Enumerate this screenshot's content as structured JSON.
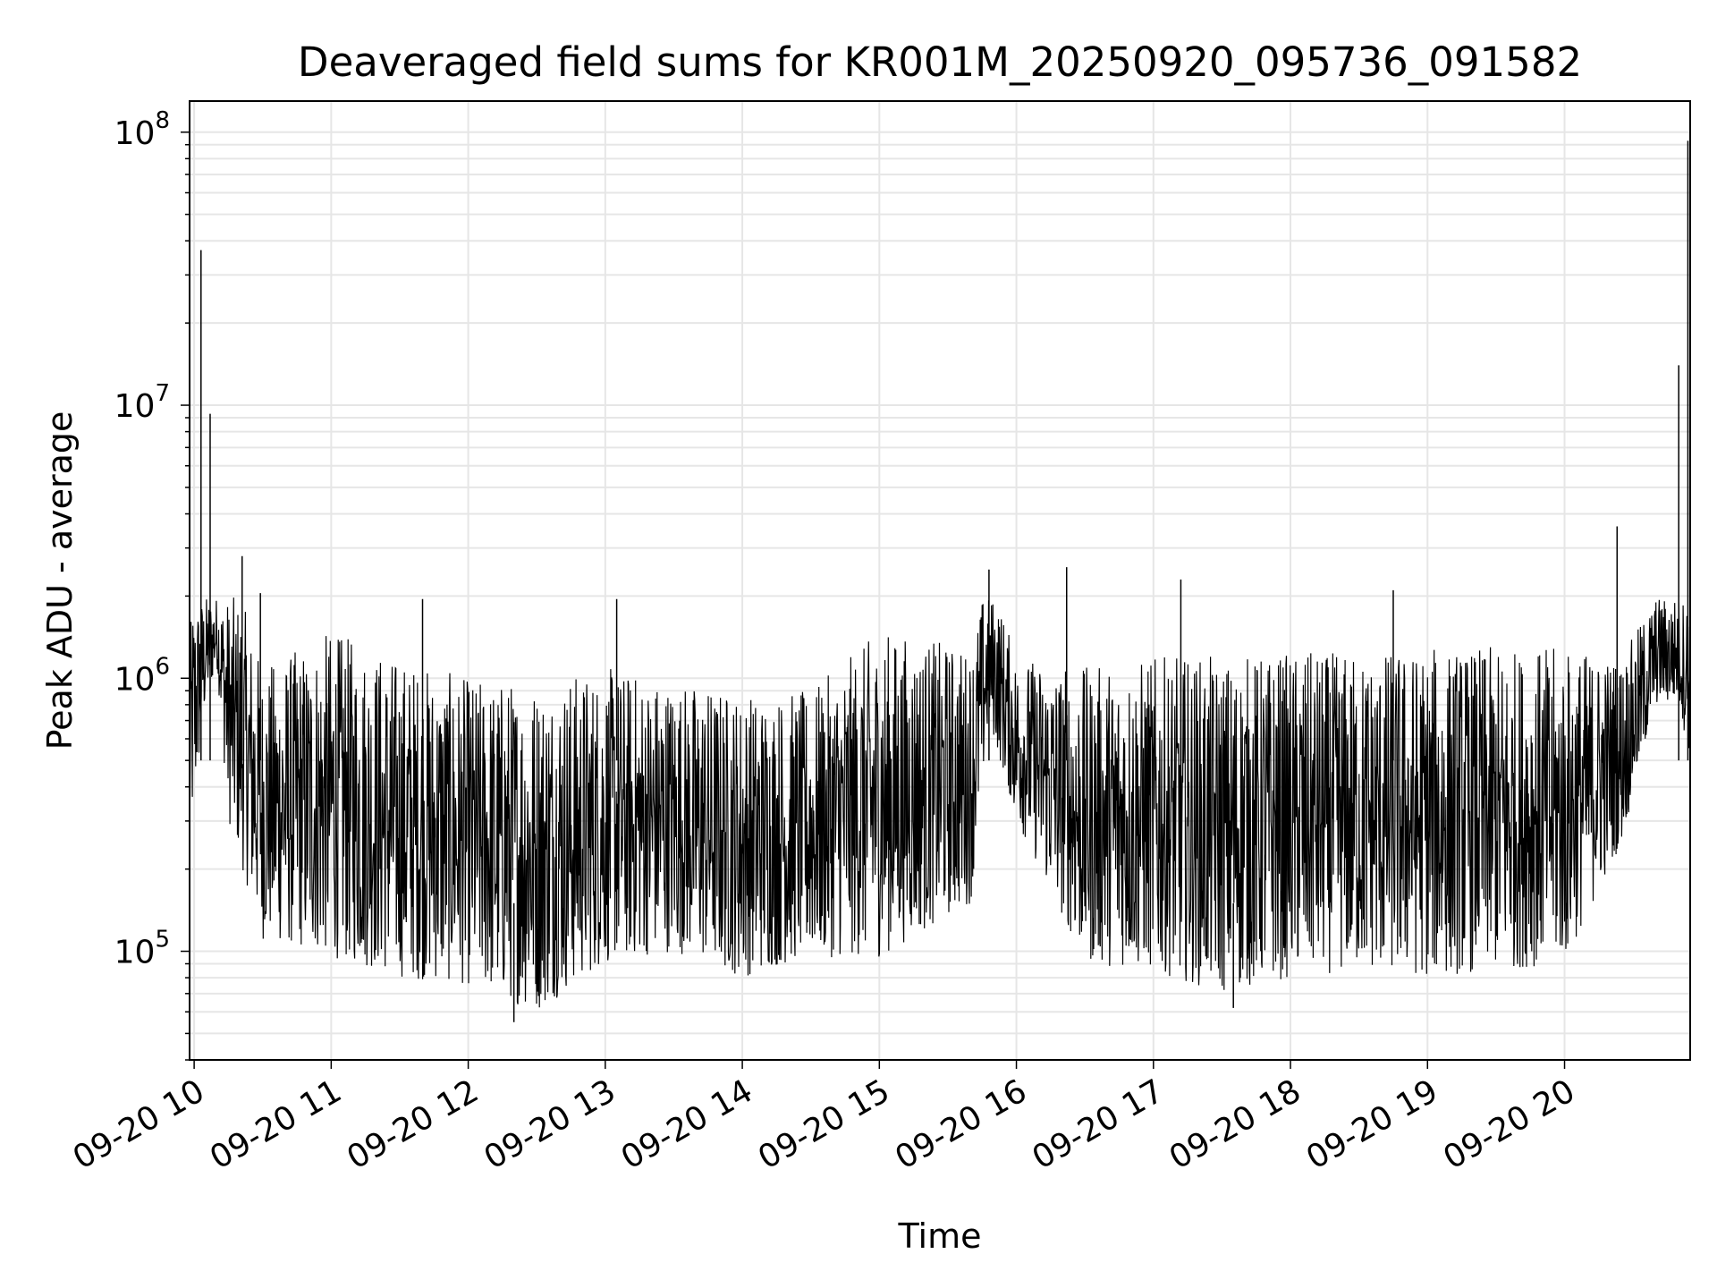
{
  "chart_data": {
    "type": "line",
    "title": "Deaveraged field sums for KR001M_20250920_095736_091582",
    "xlabel": "Time",
    "ylabel": "Peak ADU - average",
    "yscale": "log",
    "ylim": [
      40000,
      130000000
    ],
    "xlim": [
      "2025-09-20 09:58",
      "2025-09-20 20:55"
    ],
    "grid": "on (major and minor)",
    "line_color": "#000000",
    "x_ticks": [
      {
        "t": "2025-09-20 10:00",
        "label": "09-20 10"
      },
      {
        "t": "2025-09-20 11:00",
        "label": "09-20 11"
      },
      {
        "t": "2025-09-20 12:00",
        "label": "09-20 12"
      },
      {
        "t": "2025-09-20 13:00",
        "label": "09-20 13"
      },
      {
        "t": "2025-09-20 14:00",
        "label": "09-20 14"
      },
      {
        "t": "2025-09-20 15:00",
        "label": "09-20 15"
      },
      {
        "t": "2025-09-20 16:00",
        "label": "09-20 16"
      },
      {
        "t": "2025-09-20 17:00",
        "label": "09-20 17"
      },
      {
        "t": "2025-09-20 18:00",
        "label": "09-20 18"
      },
      {
        "t": "2025-09-20 19:00",
        "label": "09-20 19"
      },
      {
        "t": "2025-09-20 20:00",
        "label": "09-20 20"
      }
    ],
    "y_ticks": [
      {
        "value": 100000,
        "base": "10",
        "exp": "5"
      },
      {
        "value": 1000000,
        "base": "10",
        "exp": "6"
      },
      {
        "value": 10000000,
        "base": "10",
        "exp": "7"
      },
      {
        "value": 100000000,
        "base": "10",
        "exp": "8"
      }
    ],
    "series": [
      {
        "values_description": "dense noisy trace; envelope points (time, low, high) in ADU",
        "envelope": [
          [
            "2025-09-20 09:58",
            220000,
            1200000
          ],
          [
            "2025-09-20 10:05",
            800000,
            37000000
          ],
          [
            "2025-09-20 10:10",
            1100000,
            2500000
          ],
          [
            "2025-09-20 10:15",
            300000,
            2800000
          ],
          [
            "2025-09-20 10:30",
            110000,
            1100000
          ],
          [
            "2025-09-20 11:00",
            95000,
            1500000
          ],
          [
            "2025-09-20 11:30",
            80000,
            1200000
          ],
          [
            "2025-09-20 12:00",
            75000,
            1000000
          ],
          [
            "2025-09-20 12:30",
            60000,
            1000000
          ],
          [
            "2025-09-20 13:00",
            90000,
            1100000
          ],
          [
            "2025-09-20 13:30",
            100000,
            1000000
          ],
          [
            "2025-09-20 14:00",
            80000,
            900000
          ],
          [
            "2025-09-20 14:30",
            95000,
            900000
          ],
          [
            "2025-09-20 15:00",
            95000,
            1500000
          ],
          [
            "2025-09-20 15:40",
            150000,
            1300000
          ],
          [
            "2025-09-20 15:48",
            700000,
            2500000
          ],
          [
            "2025-09-20 16:00",
            300000,
            1200000
          ],
          [
            "2025-09-20 16:30",
            90000,
            1100000
          ],
          [
            "2025-09-20 17:00",
            85000,
            1200000
          ],
          [
            "2025-09-20 17:30",
            70000,
            1200000
          ],
          [
            "2025-09-20 18:00",
            80000,
            1250000
          ],
          [
            "2025-09-20 18:30",
            85000,
            1250000
          ],
          [
            "2025-09-20 19:00",
            80000,
            1300000
          ],
          [
            "2025-09-20 19:30",
            85000,
            1300000
          ],
          [
            "2025-09-20 20:00",
            90000,
            1300000
          ],
          [
            "2025-09-20 20:25",
            250000,
            1200000
          ],
          [
            "2025-09-20 20:40",
            800000,
            2000000
          ],
          [
            "2025-09-20 20:50",
            800000,
            14000000
          ],
          [
            "2025-09-20 20:55",
            500000,
            93000000
          ]
        ],
        "spikes": [
          [
            "2025-09-20 10:03",
            37000000
          ],
          [
            "2025-09-20 10:07",
            9300000
          ],
          [
            "2025-09-20 10:21",
            2800000
          ],
          [
            "2025-09-20 10:29",
            2050000
          ],
          [
            "2025-09-20 11:40",
            1950000
          ],
          [
            "2025-09-20 12:20",
            55000
          ],
          [
            "2025-09-20 13:05",
            1950000
          ],
          [
            "2025-09-20 15:48",
            2500000
          ],
          [
            "2025-09-20 16:22",
            2550000
          ],
          [
            "2025-09-20 17:12",
            2300000
          ],
          [
            "2025-09-20 17:35",
            62000
          ],
          [
            "2025-09-20 18:45",
            2100000
          ],
          [
            "2025-09-20 20:23",
            3600000
          ],
          [
            "2025-09-20 20:50",
            14000000
          ],
          [
            "2025-09-20 20:54",
            93000000
          ]
        ]
      }
    ]
  }
}
